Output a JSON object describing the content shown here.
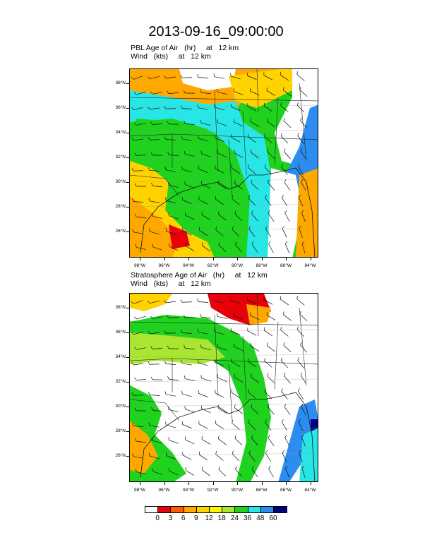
{
  "title": "2013-09-16_09:00:00",
  "panels": [
    {
      "label_line1": "PBL Age of Air   (hr)     at   12 km",
      "label_line2": "Wind   (kts)     at   12 km",
      "lat_labels": [
        "38°N",
        "36°N",
        "34°N",
        "32°N",
        "30°N",
        "28°N",
        "26°N"
      ],
      "lon_labels": [
        "98°W",
        "96°W",
        "94°W",
        "92°W",
        "90°W",
        "88°W",
        "86°W",
        "84°W"
      ]
    },
    {
      "label_line1": "Stratosphere Age of Air   (hr)     at   12 km",
      "label_line2": "Wind   (kts)     at   12 km",
      "lat_labels": [
        "38°N",
        "36°N",
        "34°N",
        "32°N",
        "30°N",
        "28°N",
        "26°N"
      ],
      "lon_labels": [
        "98°W",
        "96°W",
        "94°W",
        "92°W",
        "90°W",
        "88°W",
        "86°W",
        "84°W"
      ]
    }
  ],
  "colorbar": {
    "labels": [
      "0",
      "3",
      "6",
      "9",
      "12",
      "18",
      "24",
      "36",
      "48",
      "60"
    ],
    "colors": [
      "#ffffff",
      "#e8000b",
      "#ff5a00",
      "#ffa800",
      "#ffd200",
      "#f7f700",
      "#a8e632",
      "#1ed21e",
      "#28e6e6",
      "#2c8cf0",
      "#00007a"
    ]
  }
}
